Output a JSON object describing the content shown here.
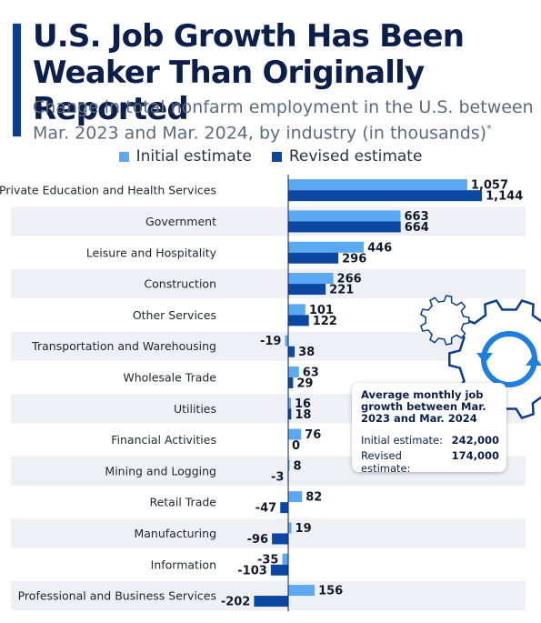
{
  "title": "U.S. Job Growth Has Been Weaker Than Originally Reported",
  "subtitle": "Change in total nonfarm employment in the U.S. between Mar. 2023 and Mar. 2024, by industry (in thousands)",
  "subtitle_mark": "*",
  "colors": {
    "initial": "#5aa9f2",
    "revised": "#0a48a3",
    "accent": "#0a3d8f",
    "band": "#eef0f5"
  },
  "callout": {
    "title": "Average monthly job growth between Mar. 2023 and Mar. 2024",
    "initial_label": "Initial estimate:",
    "initial_value": "242,000",
    "revised_label": "Revised estimate:",
    "revised_value": "174,000"
  },
  "decoration": {
    "icon": "refresh-gear-icon"
  },
  "chart_data": {
    "type": "bar",
    "orientation": "horizontal",
    "title": "U.S. Job Growth Has Been Weaker Than Originally Reported",
    "categories": [
      "Private Education and Health Services",
      "Government",
      "Leisure and Hospitality",
      "Construction",
      "Other Services",
      "Transportation and Warehousing",
      "Wholesale Trade",
      "Utilities",
      "Financial Activities",
      "Mining and Logging",
      "Retail Trade",
      "Manufacturing",
      "Information",
      "Professional and Business Services"
    ],
    "series": [
      {
        "name": "Initial estimate",
        "values": [
          1057,
          663,
          446,
          266,
          101,
          -19,
          63,
          16,
          76,
          8,
          82,
          19,
          -35,
          156
        ]
      },
      {
        "name": "Revised estimate",
        "values": [
          1144,
          664,
          296,
          221,
          122,
          38,
          29,
          18,
          0,
          -3,
          -47,
          -96,
          -103,
          -202
        ]
      }
    ],
    "value_labels": [
      [
        "1,057",
        "663",
        "446",
        "266",
        "101",
        "-19",
        "63",
        "16",
        "76",
        "8",
        "82",
        "19",
        "-35",
        "156"
      ],
      [
        "1,144",
        "664",
        "296",
        "221",
        "122",
        "38",
        "29",
        "18",
        "0",
        "-3",
        "-47",
        "-96",
        "-103",
        "-202"
      ]
    ],
    "xlim": [
      -202,
      1144
    ],
    "xlabel": "",
    "ylabel": "",
    "grid": false,
    "legend": "top-center"
  }
}
